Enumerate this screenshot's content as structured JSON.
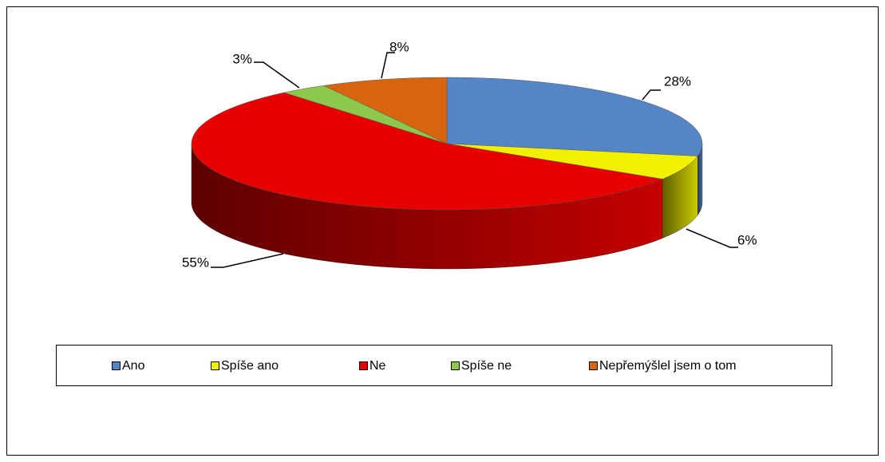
{
  "chart_data": {
    "type": "pie",
    "categories": [
      "Ano",
      "Spíše ano",
      "Ne",
      "Spíše ne",
      "Nepřemýšlel jsem o tom"
    ],
    "values": [
      28,
      6,
      55,
      3,
      8
    ],
    "value_labels": [
      "28%",
      "6%",
      "55%",
      "3%",
      "8%"
    ],
    "colors": [
      "#5585c6",
      "#f0f000",
      "#e80000",
      "#8cc84b",
      "#d8640e"
    ],
    "legend": "bottom"
  }
}
